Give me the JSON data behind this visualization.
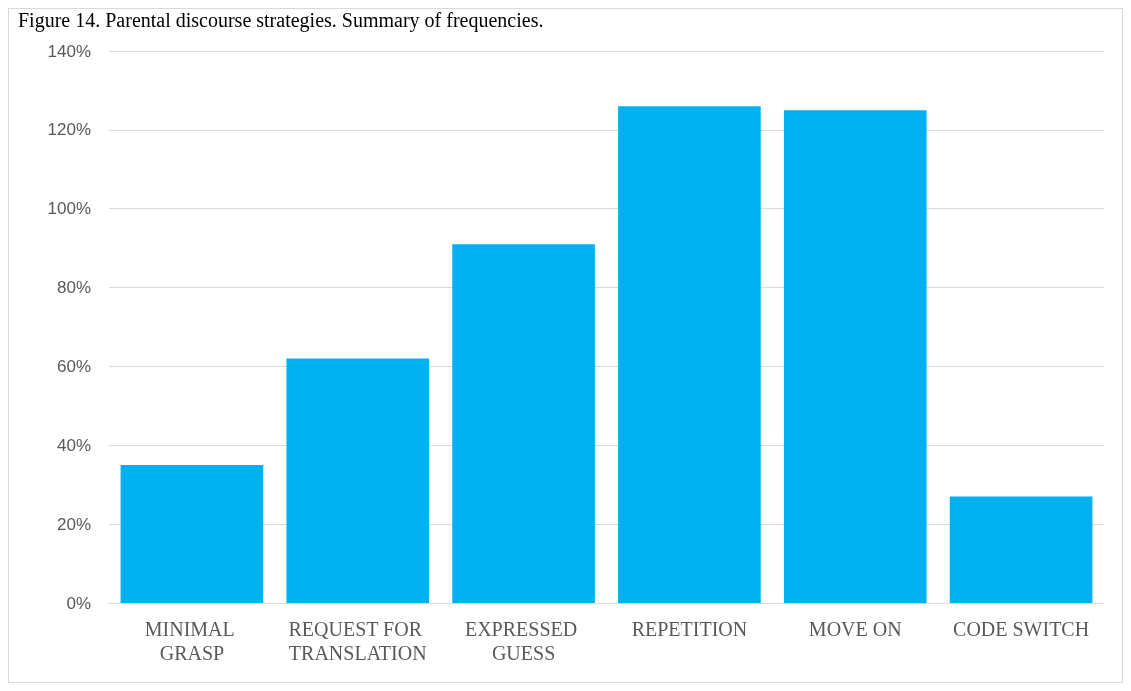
{
  "chart_data": {
    "type": "bar",
    "title": "Figure 14. Parental discourse strategies. Summary of frequencies.",
    "categories": [
      "MINIMAL GRASP",
      "REQUEST FOR TRANSLATION",
      "EXPRESSED GUESS",
      "REPETITION",
      "MOVE ON",
      "CODE SWITCH"
    ],
    "values": [
      35,
      62,
      91,
      126,
      125,
      27
    ],
    "color": "#00b0f0",
    "ylim": [
      0,
      140
    ],
    "yticks": [
      {
        "value": 0,
        "label": "0%"
      },
      {
        "value": 20,
        "label": "20%"
      },
      {
        "value": 40,
        "label": "40%"
      },
      {
        "value": 60,
        "label": "60%"
      },
      {
        "value": 80,
        "label": "80%"
      },
      {
        "value": 100,
        "label": "100%"
      },
      {
        "value": 120,
        "label": "120%"
      },
      {
        "value": 140,
        "label": "140%"
      }
    ],
    "grid": "y"
  }
}
